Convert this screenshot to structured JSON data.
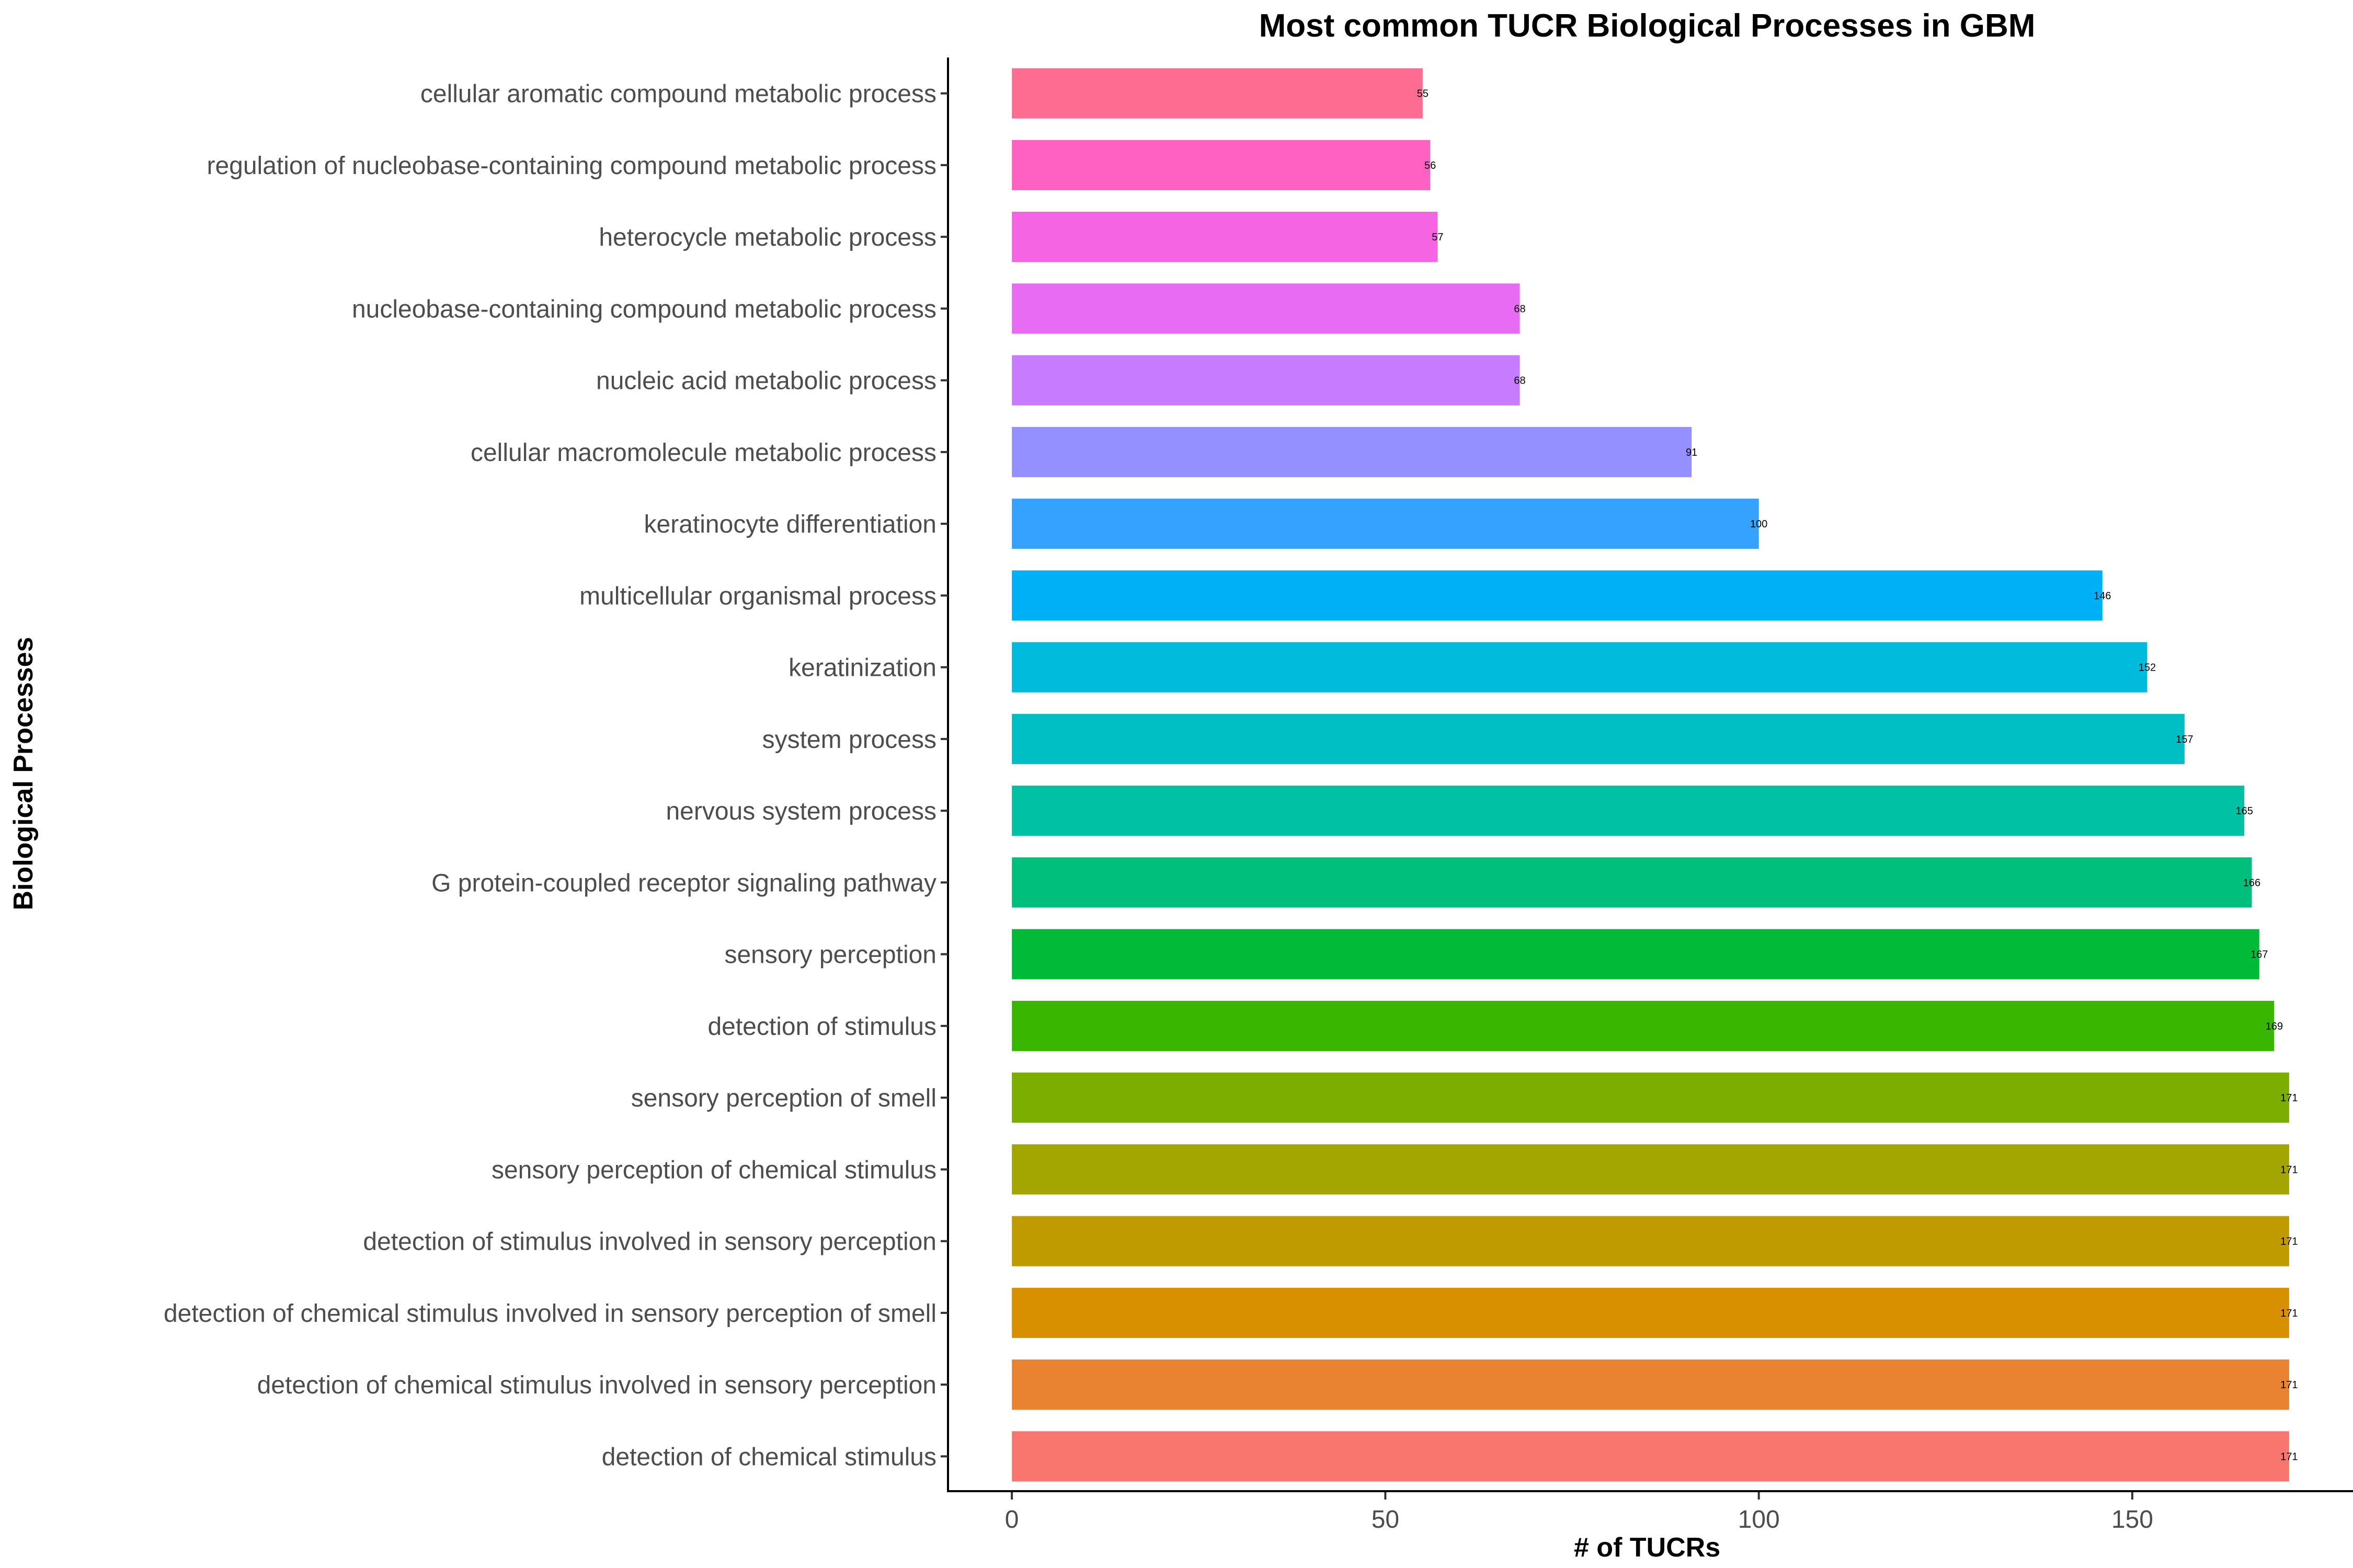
{
  "chart_data": {
    "type": "bar",
    "orientation": "horizontal",
    "title": "Most common TUCR Biological Processes in GBM",
    "xlabel": "# of TUCRs",
    "ylabel": "Biological Processes",
    "xlim": [
      -8.55,
      179.55
    ],
    "xticks": [
      "0",
      "50",
      "100",
      "150"
    ],
    "xtick_values": [
      0,
      50,
      100,
      150
    ],
    "grid": false,
    "legend": "none",
    "categories": [
      "cellular aromatic compound metabolic process",
      "regulation of nucleobase-containing compound metabolic process",
      "heterocycle metabolic process",
      "nucleobase-containing compound metabolic process",
      "nucleic acid metabolic process",
      "cellular macromolecule metabolic process",
      "keratinocyte differentiation",
      "multicellular organismal process",
      "keratinization",
      "system process",
      "nervous system process",
      "G protein-coupled receptor signaling pathway",
      "sensory perception",
      "detection of stimulus",
      "sensory perception of smell",
      "sensory perception of chemical stimulus",
      "detection of stimulus involved in sensory perception",
      "detection of chemical stimulus involved in sensory perception of smell",
      "detection of chemical stimulus involved in sensory perception",
      "detection of chemical stimulus"
    ],
    "values": [
      55,
      56,
      57,
      68,
      68,
      91,
      100,
      146,
      152,
      157,
      165,
      166,
      167,
      169,
      171,
      171,
      171,
      171,
      171,
      171
    ],
    "data_labels": [
      "55",
      "56",
      "57",
      "68",
      "68",
      "91",
      "100",
      "146",
      "152",
      "157",
      "165",
      "166",
      "167",
      "169",
      "171",
      "171",
      "171",
      "171",
      "171",
      "171"
    ],
    "colors": [
      "#FF6C91",
      "#FF61C3",
      "#F564E3",
      "#E76BF3",
      "#C77CFF",
      "#9590FF",
      "#35A2FF",
      "#00B0F6",
      "#00BBDC",
      "#00BFC4",
      "#00C1A3",
      "#00BF7D",
      "#00BA38",
      "#39B600",
      "#7CAE00",
      "#A3A500",
      "#C09B00",
      "#D89000",
      "#EA8331",
      "#F8766D"
    ]
  }
}
